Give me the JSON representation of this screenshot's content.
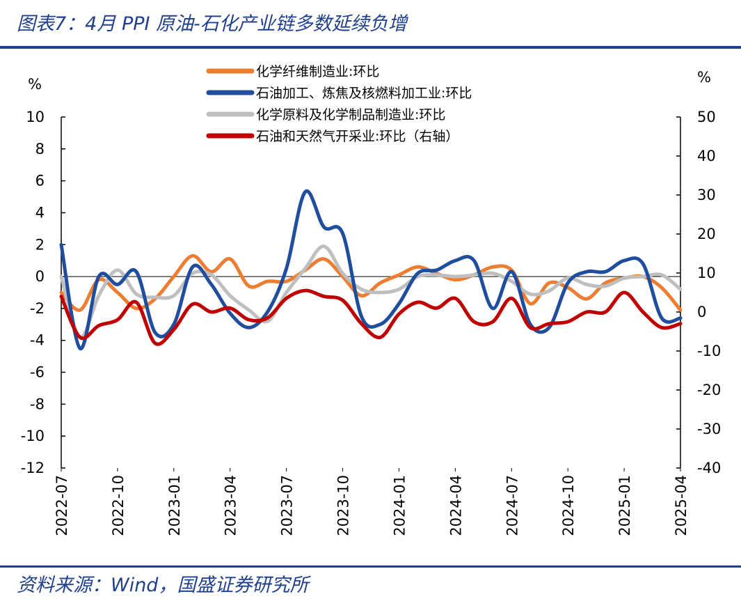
{
  "title": "图表7：4月 PPI 原油-石化产业链多数延续负增",
  "source": "资料来源：Wind，国盛证券研究所",
  "colors": {
    "brand": "#1F3F8F"
  },
  "chart_data": {
    "type": "line",
    "left_unit": "%",
    "right_unit": "%",
    "ylim_left": [
      -12,
      10
    ],
    "yticks_left": [
      "10",
      "8",
      "6",
      "4",
      "2",
      "0",
      "-2",
      "-4",
      "-6",
      "-8",
      "-10",
      "-12"
    ],
    "ylim_right": [
      -40,
      50
    ],
    "yticks_right": [
      "50",
      "40",
      "30",
      "20",
      "10",
      "0",
      "-10",
      "-20",
      "-30",
      "-40"
    ],
    "xtick_labels": [
      "2022-07",
      "2022-10",
      "2023-01",
      "2023-04",
      "2023-07",
      "2023-10",
      "2024-01",
      "2024-04",
      "2024-07",
      "2024-10",
      "2025-01",
      "2025-04"
    ],
    "x": [
      "2022-07",
      "2022-08",
      "2022-09",
      "2022-10",
      "2022-11",
      "2022-12",
      "2023-01",
      "2023-02",
      "2023-03",
      "2023-04",
      "2023-05",
      "2023-06",
      "2023-07",
      "2023-08",
      "2023-09",
      "2023-10",
      "2023-11",
      "2023-12",
      "2024-01",
      "2024-02",
      "2024-03",
      "2024-04",
      "2024-05",
      "2024-06",
      "2024-07",
      "2024-08",
      "2024-09",
      "2024-10",
      "2024-11",
      "2024-12",
      "2025-01",
      "2025-02",
      "2025-03",
      "2025-04"
    ],
    "legend_position": "top-center",
    "series": [
      {
        "name": "化学纤维制造业:环比",
        "axis": "left",
        "color": "#ED7D31",
        "values": [
          -1.0,
          -2.1,
          -0.2,
          -1.0,
          -2.0,
          -1.4,
          0.0,
          1.3,
          0.3,
          1.1,
          -0.6,
          -0.3,
          -0.3,
          0.4,
          1.1,
          0.0,
          -1.2,
          -0.4,
          0.1,
          0.6,
          0.2,
          -0.2,
          0.1,
          0.6,
          0.4,
          -1.7,
          -0.4,
          -0.7,
          -1.4,
          -0.4,
          -0.1,
          0.0,
          -0.7,
          -2.1
        ]
      },
      {
        "name": "石油加工、炼焦及核燃料加工业:环比",
        "axis": "left",
        "color": "#1F4E9E",
        "values": [
          2.0,
          -4.5,
          0.0,
          -0.5,
          0.3,
          -3.5,
          -3.0,
          0.6,
          -0.5,
          -2.3,
          -3.2,
          -2.2,
          0.5,
          5.3,
          3.1,
          2.7,
          -2.5,
          -3.0,
          -1.7,
          0.2,
          0.4,
          1.0,
          1.0,
          -2.0,
          0.3,
          -3.0,
          -3.2,
          -0.4,
          0.3,
          0.3,
          1.0,
          0.8,
          -2.6,
          -2.6
        ]
      },
      {
        "name": "化学原料及化学制品制造业:环比",
        "axis": "left",
        "color": "#BFBFBF",
        "values": [
          0.0,
          -3.8,
          -1.2,
          0.4,
          -1.1,
          -1.3,
          -1.2,
          0.2,
          0.1,
          -1.2,
          -2.1,
          -2.8,
          -1.0,
          0.5,
          1.9,
          0.2,
          -0.8,
          -1.0,
          -0.8,
          0.0,
          0.1,
          0.0,
          0.1,
          0.2,
          -0.3,
          -1.1,
          -0.9,
          -0.1,
          -0.5,
          -0.6,
          -0.1,
          0.0,
          0.1,
          -0.8
        ]
      },
      {
        "name": "石油和天然气开采业:环比（右轴）",
        "axis": "right",
        "color": "#C00000",
        "values": [
          4.0,
          -6.5,
          -3.5,
          -2.0,
          2.5,
          -8.0,
          -4.5,
          2.0,
          0.0,
          1.0,
          -2.0,
          -1.5,
          3.5,
          5.5,
          4.0,
          3.0,
          -3.0,
          -6.5,
          -0.5,
          2.5,
          1.0,
          3.5,
          -2.5,
          -2.5,
          3.5,
          -4.0,
          -3.0,
          -2.5,
          0.0,
          0.0,
          5.0,
          0.0,
          -4.0,
          -3.0
        ]
      }
    ]
  }
}
